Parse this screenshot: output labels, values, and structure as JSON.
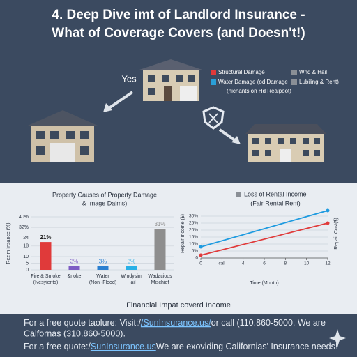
{
  "header": {
    "title": [
      "4. Deep Dive imt of Landlord Insurance -",
      "What of Coverage Covers (and Doesn't!)"
    ]
  },
  "illustration": {
    "label": "Yes",
    "legend": [
      {
        "label": "Structural Damage",
        "color": "#e03a3a"
      },
      {
        "label": "Water Damage (od Damage",
        "color": "#2a9fd8"
      },
      {
        "label": "(nichants on Hd Realpoot)"
      },
      {
        "label": "Wnd & Hail",
        "color": "#8a8f96"
      },
      {
        "label": "Lubiling & Rent)",
        "color": "#8a8f96"
      }
    ]
  },
  "chart_data": [
    {
      "type": "bar",
      "title": "Property Causes of Property Damage",
      "subtitle": "& Image Dalms)",
      "y_label": "Rezim Insance (%)",
      "categories": [
        [
          "Fire & Smoke",
          "(Nesyients)"
        ],
        [
          "&noke"
        ],
        [
          "Water",
          "(Non -Flood)"
        ],
        [
          "Windysim",
          "Hail"
        ],
        [
          "Wadacious",
          "Mischief"
        ]
      ],
      "values": [
        21,
        3,
        3,
        3,
        31
      ],
      "value_labels": [
        "21%",
        "3%",
        "3%",
        "3%",
        "31%"
      ],
      "colors": [
        "#e03a3a",
        "#7d5cc4",
        "#2a7fd0",
        "#29b0e6",
        "#8e8e8e"
      ],
      "ylim": [
        0,
        40
      ],
      "yticks": [
        {
          "value": 40,
          "label": "40%"
        },
        {
          "value": 32,
          "label": "32%"
        },
        24,
        18,
        10,
        5,
        0
      ]
    },
    {
      "type": "line",
      "title": "Loss of Rental Income",
      "subtitle": "(Fair Rental Rent)",
      "legend_color": "#8a8f96",
      "y_label": "Repair Income ($)",
      "y2_label": "Repair Cost($)",
      "x_label": "Time (Month)",
      "x": [
        0,
        12
      ],
      "series": [
        {
          "color": "#1e9be0",
          "values": [
            8,
            34
          ]
        },
        {
          "color": "#e03a3a",
          "values": [
            2,
            25
          ]
        }
      ],
      "xlim": [
        0,
        12
      ],
      "xticks": [
        0,
        {
          "value": 2,
          "label": "call"
        },
        4,
        6,
        8,
        10,
        12
      ],
      "ylim": [
        0,
        35
      ],
      "yticks": [
        {
          "value": 30,
          "label": "30%"
        },
        {
          "value": 25,
          "label": "25%"
        },
        {
          "value": 20,
          "label": "20%"
        },
        {
          "value": 15,
          "label": "15%"
        },
        {
          "value": 10,
          "label": "10%"
        },
        {
          "value": 5,
          "label": "5%"
        },
        0
      ]
    }
  ],
  "footer": {
    "caption": "Financial Impat coverd Income",
    "line1": [
      "For a free quote taolure: Visit:/",
      "/SunInsurance.us/",
      "or call (110.860-5000. We are"
    ],
    "line2": "Calfornas (310.860-5000).",
    "line3": [
      "For a free quote:/",
      "SunInsurance.us",
      "We are exoviding Californias' Insurance needs!"
    ]
  }
}
